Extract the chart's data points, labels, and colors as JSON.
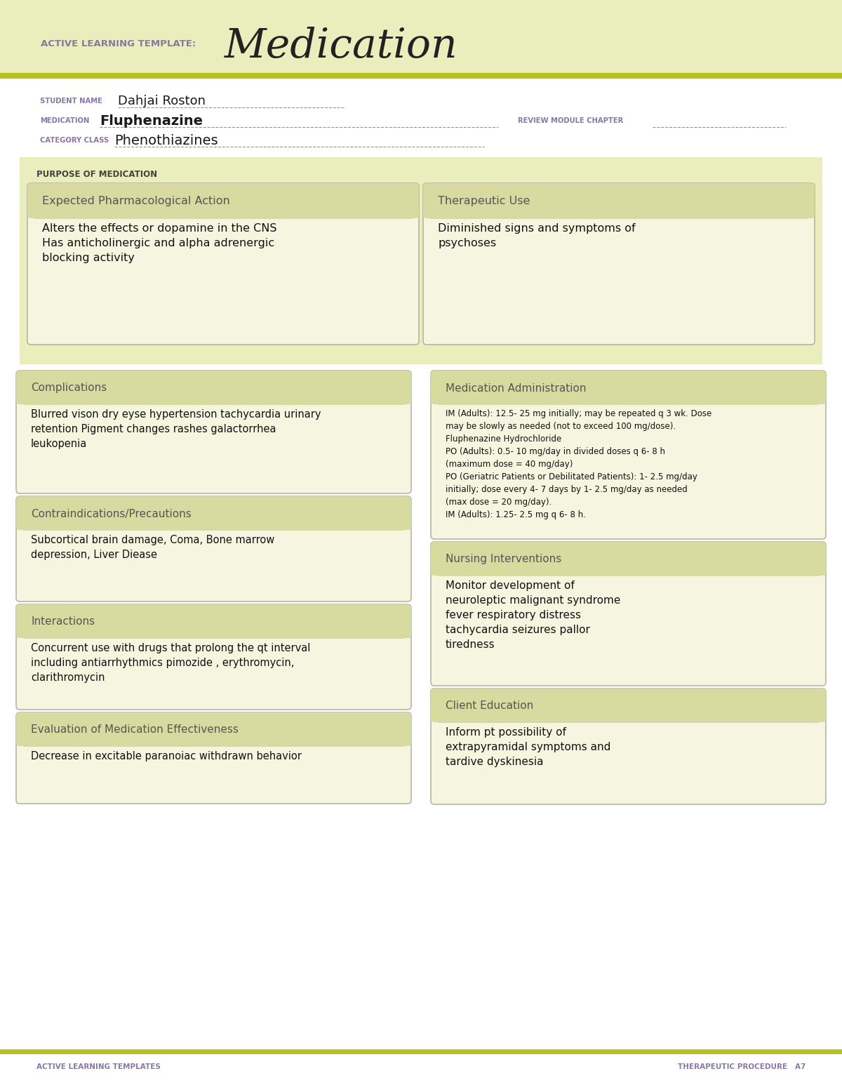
{
  "page_bg": "#ffffff",
  "header_bg": "#eaedbc",
  "header_stripe_color": "#b8c020",
  "header_label": "ACTIVE LEARNING TEMPLATE:",
  "header_title": "Medication",
  "header_label_color": "#8878a8",
  "header_title_color": "#222222",
  "footer_left": "ACTIVE LEARNING TEMPLATES",
  "footer_right": "THERAPEUTIC PROCEDURE   A7",
  "footer_color": "#8878a8",
  "student_label": "STUDENT NAME",
  "student_value": "Dahjai Roston",
  "medication_label": "MEDICATION",
  "medication_value": "Fluphenazine",
  "category_label": "CATEGORY CLASS",
  "category_value": "Phenothiazines",
  "review_label": "REVIEW MODULE CHAPTER",
  "label_color": "#8878a8",
  "value_color": "#1a1a1a",
  "purpose_label": "PURPOSE OF MEDICATION",
  "purpose_bg": "#eaedbc",
  "box_bg": "#f5f5e0",
  "box_border": "#b0b0a0",
  "box_header_bg": "#d8dba0",
  "section_header_color": "#555555",
  "section_content_color": "#111111",
  "left_sections": [
    {
      "title": "Expected Pharmacological Action",
      "content": "Alters the effects or dopamine in the CNS\nHas anticholinergic and alpha adrenergic\nblocking activity"
    },
    {
      "title": "Complications",
      "content": "Blurred vison dry eyse hypertension tachycardia urinary\nretention Pigment changes rashes galactorrhea\nleukopenia"
    },
    {
      "title": "Contraindications/Precautions",
      "content": "Subcortical brain damage, Coma, Bone marrow\ndepression, Liver Diease"
    },
    {
      "title": "Interactions",
      "content": "Concurrent use with drugs that prolong the qt interval\nincluding antiarrhythmics pimozide , erythromycin,\nclarithromycin"
    },
    {
      "title": "Evaluation of Medication Effectiveness",
      "content": "Decrease in excitable paranoiac withdrawn behavior"
    }
  ],
  "right_sections": [
    {
      "title": "Therapeutic Use",
      "content": "Diminished signs and symptoms of\npsychoses"
    },
    {
      "title": "Medication Administration",
      "content": "IM (Adults): 12.5- 25 mg initially; may be repeated q 3 wk. Dose\nmay be slowly as needed (not to exceed 100 mg/dose).\nFluphenazine Hydrochloride\nPO (Adults): 0.5- 10 mg/day in divided doses q 6- 8 h\n(maximum dose = 40 mg/day)\nPO (Geriatric Patients or Debilitated Patients): 1- 2.5 mg/day\ninitially; dose every 4- 7 days by 1- 2.5 mg/day as needed\n(max dose = 20 mg/day).\nIM (Adults): 1.25- 2.5 mg q 6- 8 h."
    },
    {
      "title": "Nursing Interventions",
      "content": "Monitor development of\nneuroleptic malignant syndrome\nfever respiratory distress\ntachycardia seizures pallor\ntiredness"
    },
    {
      "title": "Client Education",
      "content": "Inform pt possibility of\nextrapyramidal symptoms and\ntardive dyskinesia"
    }
  ]
}
